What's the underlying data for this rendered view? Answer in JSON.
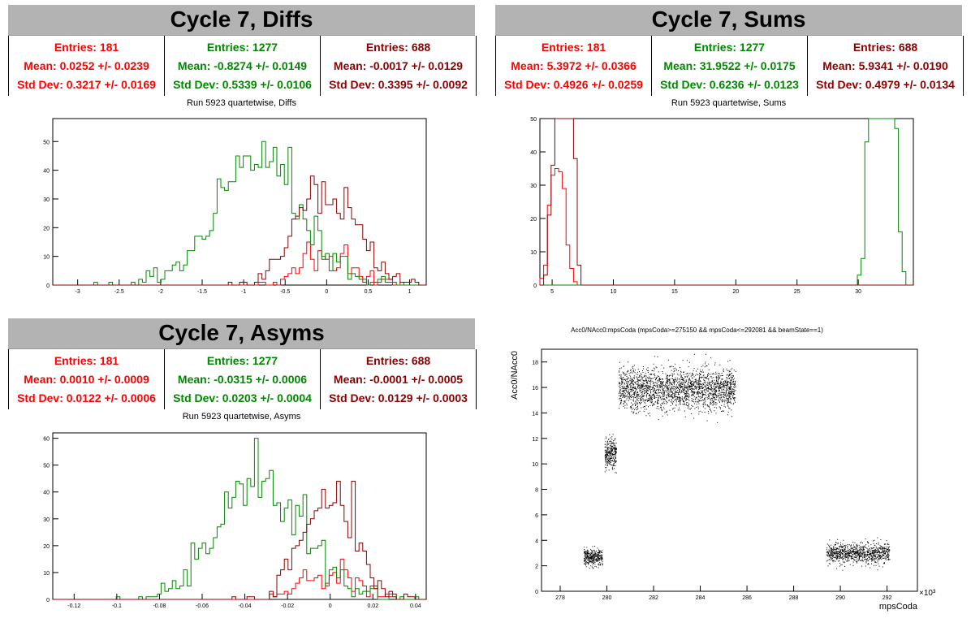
{
  "panels": [
    {
      "id": "diffs",
      "title": "Cycle 7, Diffs",
      "subtitle": "Run 5923 quartetwise, Diffs",
      "stats": [
        {
          "color": "#ff0000",
          "entries": "Entries: 181",
          "mean": "Mean: 0.0252 +/- 0.0239",
          "std": "Std Dev: 0.3217 +/- 0.0169"
        },
        {
          "color": "#008800",
          "entries": "Entries: 1277",
          "mean": "Mean: -0.8274 +/- 0.0149",
          "std": "Std Dev: 0.5339 +/- 0.0106"
        },
        {
          "color": "#8b0000",
          "entries": "Entries: 688",
          "mean": "Mean: -0.0017 +/- 0.0129",
          "std": "Std Dev: 0.3395 +/- 0.0092"
        }
      ]
    },
    {
      "id": "sums",
      "title": "Cycle 7, Sums",
      "subtitle": "Run 5923 quartetwise, Sums",
      "stats": [
        {
          "color": "#ff0000",
          "entries": "Entries: 181",
          "mean": "Mean: 5.3972 +/- 0.0366",
          "std": "Std Dev: 0.4926 +/- 0.0259"
        },
        {
          "color": "#008800",
          "entries": "Entries: 1277",
          "mean": "Mean: 31.9522 +/- 0.0175",
          "std": "Std Dev: 0.6236 +/- 0.0123"
        },
        {
          "color": "#8b0000",
          "entries": "Entries: 688",
          "mean": "Mean: 5.9341 +/- 0.0190",
          "std": "Std Dev: 0.4979 +/- 0.0134"
        }
      ]
    },
    {
      "id": "asyms",
      "title": "Cycle 7, Asyms",
      "subtitle": "Run 5923 quartetwise, Asyms",
      "stats": [
        {
          "color": "#ff0000",
          "entries": "Entries: 181",
          "mean": "Mean: 0.0010 +/- 0.0009",
          "std": "Std Dev: 0.0122 +/- 0.0006"
        },
        {
          "color": "#008800",
          "entries": "Entries: 1277",
          "mean": "Mean: -0.0315 +/- 0.0006",
          "std": "Std Dev: 0.0203 +/- 0.0004"
        },
        {
          "color": "#8b0000",
          "entries": "Entries: 688",
          "mean": "Mean: -0.0001 +/- 0.0005",
          "std": "Std Dev: 0.0129 +/- 0.0003"
        }
      ]
    }
  ],
  "scatter": {
    "title": "Acc0/NAcc0:mpsCoda (mpsCoda>=275150 && mpsCoda<=292081 && beamState==1)",
    "xlabel": "mpsCoda",
    "ylabel": "Acc0/NAcc0",
    "exponent": "×10³"
  },
  "chart_data": [
    {
      "type": "histogram",
      "title": "Run 5923 quartetwise, Diffs",
      "xlim": [
        -3.3,
        1.2
      ],
      "ylim": [
        0,
        58
      ],
      "xticks": [
        -3,
        -2.5,
        -2,
        -1.5,
        -1,
        -0.5,
        0,
        0.5,
        1
      ],
      "yticks": [
        0,
        10,
        20,
        30,
        40,
        50
      ],
      "series": [
        {
          "entries": 181,
          "mean": 0.0252,
          "std": 0.3217,
          "color": "#ff0000"
        },
        {
          "entries": 1277,
          "mean": -0.8274,
          "std": 0.5339,
          "color": "#008800"
        },
        {
          "entries": 688,
          "mean": -0.0017,
          "std": 0.3395,
          "color": "#8b0000"
        }
      ]
    },
    {
      "type": "histogram",
      "title": "Run 5923 quartetwise, Sums",
      "xlim": [
        4,
        34.5
      ],
      "ylim": [
        0,
        50
      ],
      "xticks": [
        5,
        10,
        15,
        20,
        25,
        30
      ],
      "yticks": [
        0,
        10,
        20,
        30,
        40,
        50
      ],
      "series": [
        {
          "entries": 181,
          "mean": 5.3972,
          "std": 0.4926,
          "color": "#ff0000"
        },
        {
          "entries": 1277,
          "mean": 31.9522,
          "std": 0.6236,
          "color": "#008800"
        },
        {
          "entries": 688,
          "mean": 5.9341,
          "std": 0.4979,
          "color": "#8b0000"
        }
      ]
    },
    {
      "type": "histogram",
      "title": "Run 5923 quartetwise, Asyms",
      "xlim": [
        -0.13,
        0.045
      ],
      "ylim": [
        0,
        62
      ],
      "xticks": [
        -0.12,
        -0.1,
        -0.08,
        -0.06,
        -0.04,
        -0.02,
        0,
        0.02,
        0.04
      ],
      "yticks": [
        0,
        10,
        20,
        30,
        40,
        50,
        60
      ],
      "series": [
        {
          "entries": 181,
          "mean": 0.001,
          "std": 0.0122,
          "color": "#ff0000"
        },
        {
          "entries": 1277,
          "mean": -0.0315,
          "std": 0.0203,
          "color": "#008800"
        },
        {
          "entries": 688,
          "mean": -0.0001,
          "std": 0.0129,
          "color": "#8b0000"
        }
      ]
    },
    {
      "type": "scatter",
      "title": "Acc0/NAcc0:mpsCoda (mpsCoda>=275150 && mpsCoda<=292081 && beamState==1)",
      "xlabel": "mpsCoda",
      "ylabel": "Acc0/NAcc0",
      "xlim": [
        277.2,
        293.3
      ],
      "ylim": [
        0,
        19
      ],
      "xticks": [
        278,
        280,
        282,
        284,
        286,
        288,
        290,
        292
      ],
      "yticks": [
        0,
        2,
        4,
        6,
        8,
        10,
        12,
        14,
        16,
        18
      ],
      "clusters": [
        {
          "x": [
            279.0,
            279.8
          ],
          "y_mean": 2.7,
          "y_std": 0.35,
          "n": 350
        },
        {
          "x": [
            279.9,
            280.4
          ],
          "y_mean": 10.8,
          "y_std": 0.6,
          "n": 300
        },
        {
          "x": [
            280.5,
            285.5
          ],
          "y_mean": 15.9,
          "y_std": 0.8,
          "n": 2200
        },
        {
          "x": [
            289.4,
            292.1
          ],
          "y_mean": 3.0,
          "y_std": 0.4,
          "n": 900
        }
      ]
    }
  ]
}
